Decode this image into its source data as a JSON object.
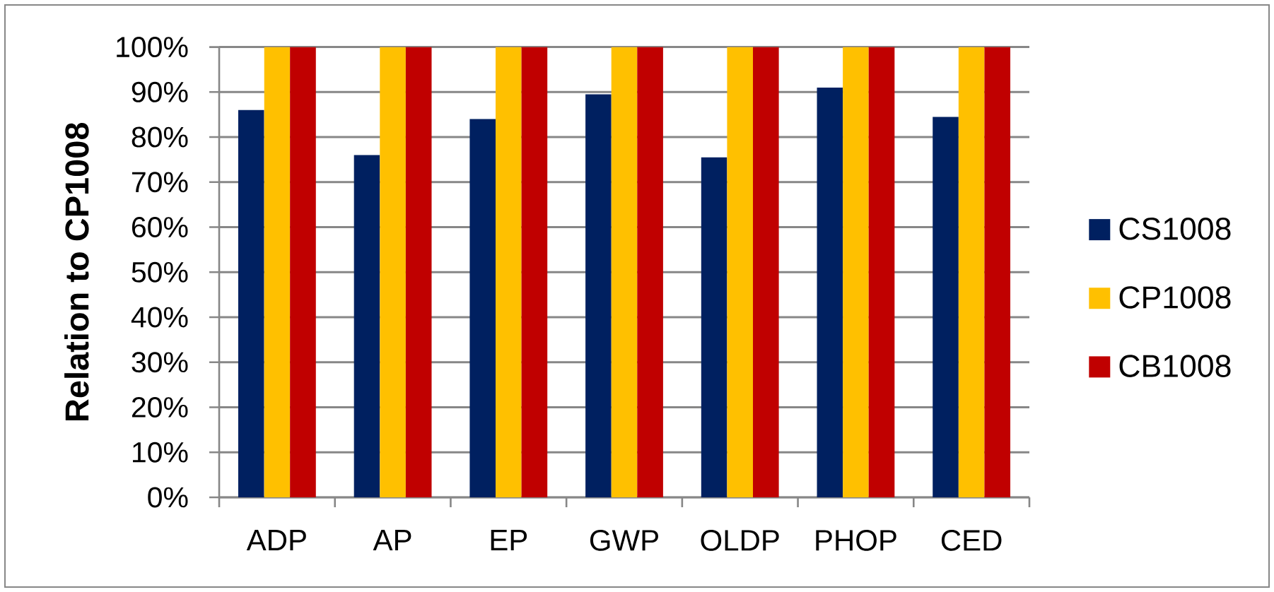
{
  "chart_data": {
    "type": "bar",
    "ylabel": "Relation to CP1008",
    "categories": [
      "ADP",
      "AP",
      "EP",
      "GWP",
      "OLDP",
      "PHOP",
      "CED"
    ],
    "series": [
      {
        "name": "CS1008",
        "color": "#002060",
        "values": [
          86,
          76,
          84,
          89.5,
          75.5,
          91,
          84.5
        ]
      },
      {
        "name": "CP1008",
        "color": "#FFC000",
        "values": [
          100,
          100,
          100,
          100,
          100,
          100,
          100
        ]
      },
      {
        "name": "CB1008",
        "color": "#C00000",
        "values": [
          100,
          100,
          100,
          100,
          100,
          100,
          100
        ]
      }
    ],
    "ylim": [
      0,
      100
    ],
    "yticks": [
      {
        "value": 0,
        "label": "0%"
      },
      {
        "value": 10,
        "label": "10%"
      },
      {
        "value": 20,
        "label": "20%"
      },
      {
        "value": 30,
        "label": "30%"
      },
      {
        "value": 40,
        "label": "40%"
      },
      {
        "value": 50,
        "label": "50%"
      },
      {
        "value": 60,
        "label": "60%"
      },
      {
        "value": 70,
        "label": "70%"
      },
      {
        "value": 80,
        "label": "80%"
      },
      {
        "value": 90,
        "label": "90%"
      },
      {
        "value": 100,
        "label": "100%"
      }
    ],
    "grid": "y",
    "legend": "right"
  }
}
